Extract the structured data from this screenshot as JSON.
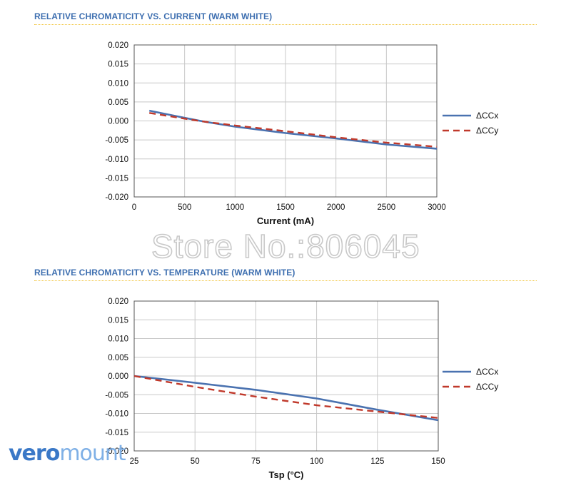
{
  "page": {
    "watermark": "Store No.:806045",
    "brand_part1": "vero",
    "brand_part2": "mount"
  },
  "colors": {
    "title": "#3e6fb0",
    "ccx": "#4a72b0",
    "ccy": "#c0392b",
    "divider": "#f1c232",
    "grid": "#c8c8c8"
  },
  "chart_data": [
    {
      "type": "line",
      "title": "RELATIVE CHROMATICITY VS. CURRENT (WARM WHITE)",
      "xlabel": "Current (mA)",
      "ylabel": "",
      "xlim": [
        0,
        3000
      ],
      "ylim": [
        -0.02,
        0.02
      ],
      "xticks": [
        0,
        500,
        1000,
        1500,
        2000,
        2500,
        3000
      ],
      "yticks": [
        0.02,
        0.015,
        0.01,
        0.005,
        0.0,
        -0.005,
        -0.01,
        -0.015,
        -0.02
      ],
      "xtick_labels": [
        "0",
        "500",
        "1000",
        "1500",
        "2000",
        "2500",
        "3000"
      ],
      "ytick_labels": [
        "0.020",
        "0.015",
        "0.010",
        "0.005",
        "0.000",
        "-0.005",
        "-0.010",
        "-0.015",
        "-0.020"
      ],
      "grid": true,
      "legend": "right",
      "series": [
        {
          "name": "ΔCCx",
          "style": "solid",
          "x": [
            150,
            500,
            700,
            1000,
            1500,
            2000,
            2500,
            3000
          ],
          "y": [
            0.0027,
            0.0008,
            -0.0002,
            -0.0015,
            -0.0032,
            -0.0046,
            -0.0062,
            -0.0073
          ]
        },
        {
          "name": "ΔCCy",
          "style": "dashed",
          "x": [
            150,
            500,
            700,
            1000,
            1500,
            2000,
            2500,
            3000
          ],
          "y": [
            0.0021,
            0.0006,
            -0.0002,
            -0.0012,
            -0.0027,
            -0.0043,
            -0.0057,
            -0.0068
          ]
        }
      ]
    },
    {
      "type": "line",
      "title": "RELATIVE CHROMATICITY VS. TEMPERATURE (WARM WHITE)",
      "xlabel": "Tsp (°C)",
      "ylabel": "",
      "xlim": [
        25,
        150
      ],
      "ylim": [
        -0.02,
        0.02
      ],
      "xticks": [
        25,
        50,
        75,
        100,
        125,
        150
      ],
      "yticks": [
        0.02,
        0.015,
        0.01,
        0.005,
        0.0,
        -0.005,
        -0.01,
        -0.015,
        -0.02
      ],
      "xtick_labels": [
        "25",
        "50",
        "75",
        "100",
        "125",
        "150"
      ],
      "ytick_labels": [
        "0.020",
        "0.015",
        "0.010",
        "0.005",
        "0.000",
        "-0.005",
        "-0.010",
        "-0.015",
        "-0.020"
      ],
      "grid": true,
      "legend": "right",
      "series": [
        {
          "name": "ΔCCx",
          "style": "solid",
          "x": [
            25,
            50,
            75,
            100,
            125,
            150
          ],
          "y": [
            0.0,
            -0.0018,
            -0.0037,
            -0.006,
            -0.009,
            -0.0118
          ]
        },
        {
          "name": "ΔCCy",
          "style": "dashed",
          "x": [
            25,
            50,
            75,
            100,
            125,
            150
          ],
          "y": [
            0.0,
            -0.0029,
            -0.0055,
            -0.0078,
            -0.0095,
            -0.0112
          ]
        }
      ]
    }
  ]
}
